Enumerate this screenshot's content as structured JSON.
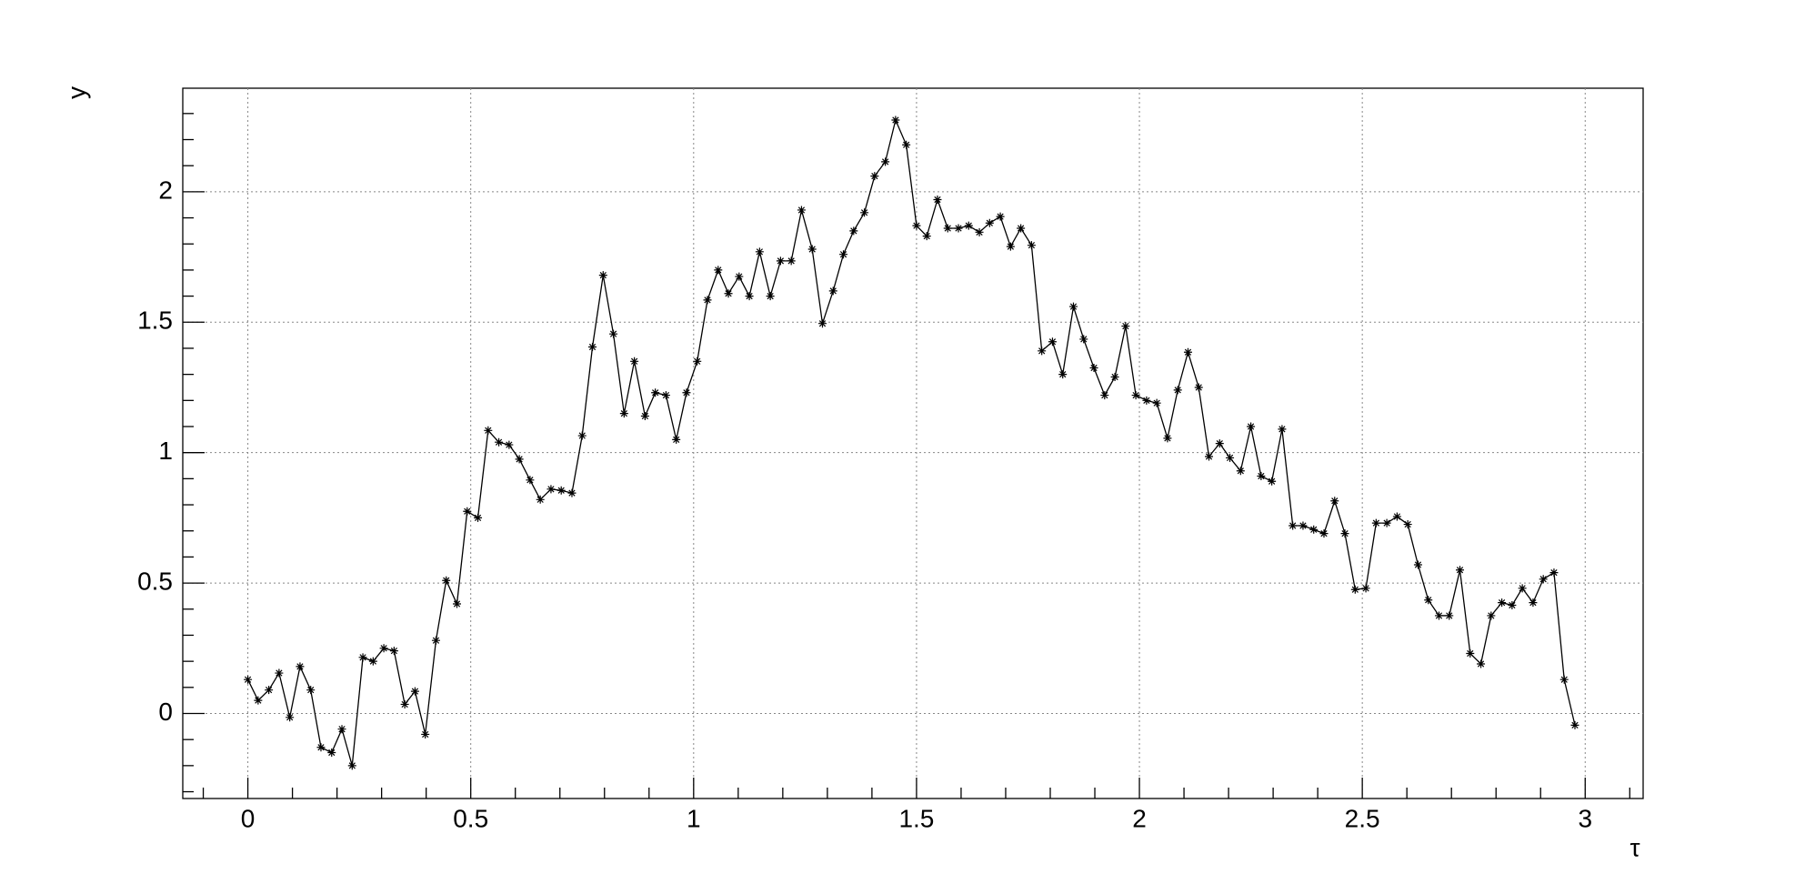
{
  "chart_data": {
    "type": "line",
    "x_label": "τ",
    "y_label": "y",
    "color": "#000000",
    "marker": "asterisk",
    "grid": true,
    "xlim": [
      -0.146,
      3.13
    ],
    "ylim": [
      -0.326,
      2.397
    ],
    "xticks": [
      0,
      0.5,
      1,
      1.5,
      2,
      2.5,
      3
    ],
    "yticks": [
      0,
      0.5,
      1,
      1.5,
      2
    ],
    "x": [
      0,
      0.023,
      0.047,
      0.07,
      0.094,
      0.117,
      0.141,
      0.164,
      0.188,
      0.211,
      0.234,
      0.258,
      0.281,
      0.305,
      0.328,
      0.352,
      0.375,
      0.398,
      0.422,
      0.445,
      0.469,
      0.492,
      0.516,
      0.539,
      0.563,
      0.586,
      0.609,
      0.633,
      0.656,
      0.68,
      0.703,
      0.727,
      0.75,
      0.773,
      0.797,
      0.82,
      0.844,
      0.867,
      0.891,
      0.914,
      0.938,
      0.961,
      0.984,
      1.008,
      1.031,
      1.055,
      1.078,
      1.102,
      1.125,
      1.148,
      1.172,
      1.195,
      1.219,
      1.242,
      1.266,
      1.289,
      1.313,
      1.336,
      1.359,
      1.383,
      1.406,
      1.43,
      1.453,
      1.477,
      1.5,
      1.523,
      1.547,
      1.57,
      1.594,
      1.617,
      1.641,
      1.664,
      1.688,
      1.711,
      1.734,
      1.758,
      1.781,
      1.805,
      1.828,
      1.852,
      1.875,
      1.898,
      1.922,
      1.945,
      1.969,
      1.992,
      2.016,
      2.039,
      2.063,
      2.086,
      2.109,
      2.133,
      2.156,
      2.18,
      2.203,
      2.227,
      2.25,
      2.273,
      2.297,
      2.32,
      2.344,
      2.367,
      2.391,
      2.414,
      2.438,
      2.461,
      2.484,
      2.508,
      2.531,
      2.555,
      2.578,
      2.602,
      2.625,
      2.648,
      2.672,
      2.695,
      2.719,
      2.742,
      2.766,
      2.789,
      2.813,
      2.836,
      2.859,
      2.883,
      2.906,
      2.93,
      2.953,
      2.977
    ],
    "values": [
      0.13,
      0.05,
      0.09,
      0.155,
      -0.015,
      0.18,
      0.09,
      -0.13,
      -0.15,
      -0.06,
      -0.2,
      0.215,
      0.2,
      0.25,
      0.24,
      0.035,
      0.085,
      -0.08,
      0.28,
      0.51,
      0.42,
      0.775,
      0.75,
      1.085,
      1.04,
      1.03,
      0.975,
      0.895,
      0.82,
      0.86,
      0.855,
      0.845,
      1.065,
      1.405,
      1.68,
      1.455,
      1.15,
      1.35,
      1.14,
      1.23,
      1.22,
      1.05,
      1.23,
      1.35,
      1.585,
      1.7,
      1.61,
      1.675,
      1.6,
      1.77,
      1.6,
      1.735,
      1.735,
      1.93,
      1.78,
      1.495,
      1.62,
      1.76,
      1.85,
      1.92,
      2.06,
      2.115,
      2.275,
      2.18,
      1.87,
      1.83,
      1.97,
      1.86,
      1.86,
      1.87,
      1.845,
      1.88,
      1.905,
      1.79,
      1.86,
      1.795,
      1.39,
      1.425,
      1.3,
      1.56,
      1.435,
      1.325,
      1.22,
      1.29,
      1.485,
      1.22,
      1.2,
      1.19,
      1.055,
      1.24,
      1.385,
      1.25,
      0.985,
      1.035,
      0.98,
      0.93,
      1.1,
      0.91,
      0.89,
      1.09,
      0.72,
      0.72,
      0.705,
      0.69,
      0.815,
      0.69,
      0.475,
      0.48,
      0.73,
      0.73,
      0.755,
      0.725,
      0.57,
      0.435,
      0.375,
      0.375,
      0.55,
      0.23,
      0.19,
      0.375,
      0.425,
      0.415,
      0.48,
      0.425,
      0.515,
      0.54,
      0.13,
      -0.045
    ]
  }
}
